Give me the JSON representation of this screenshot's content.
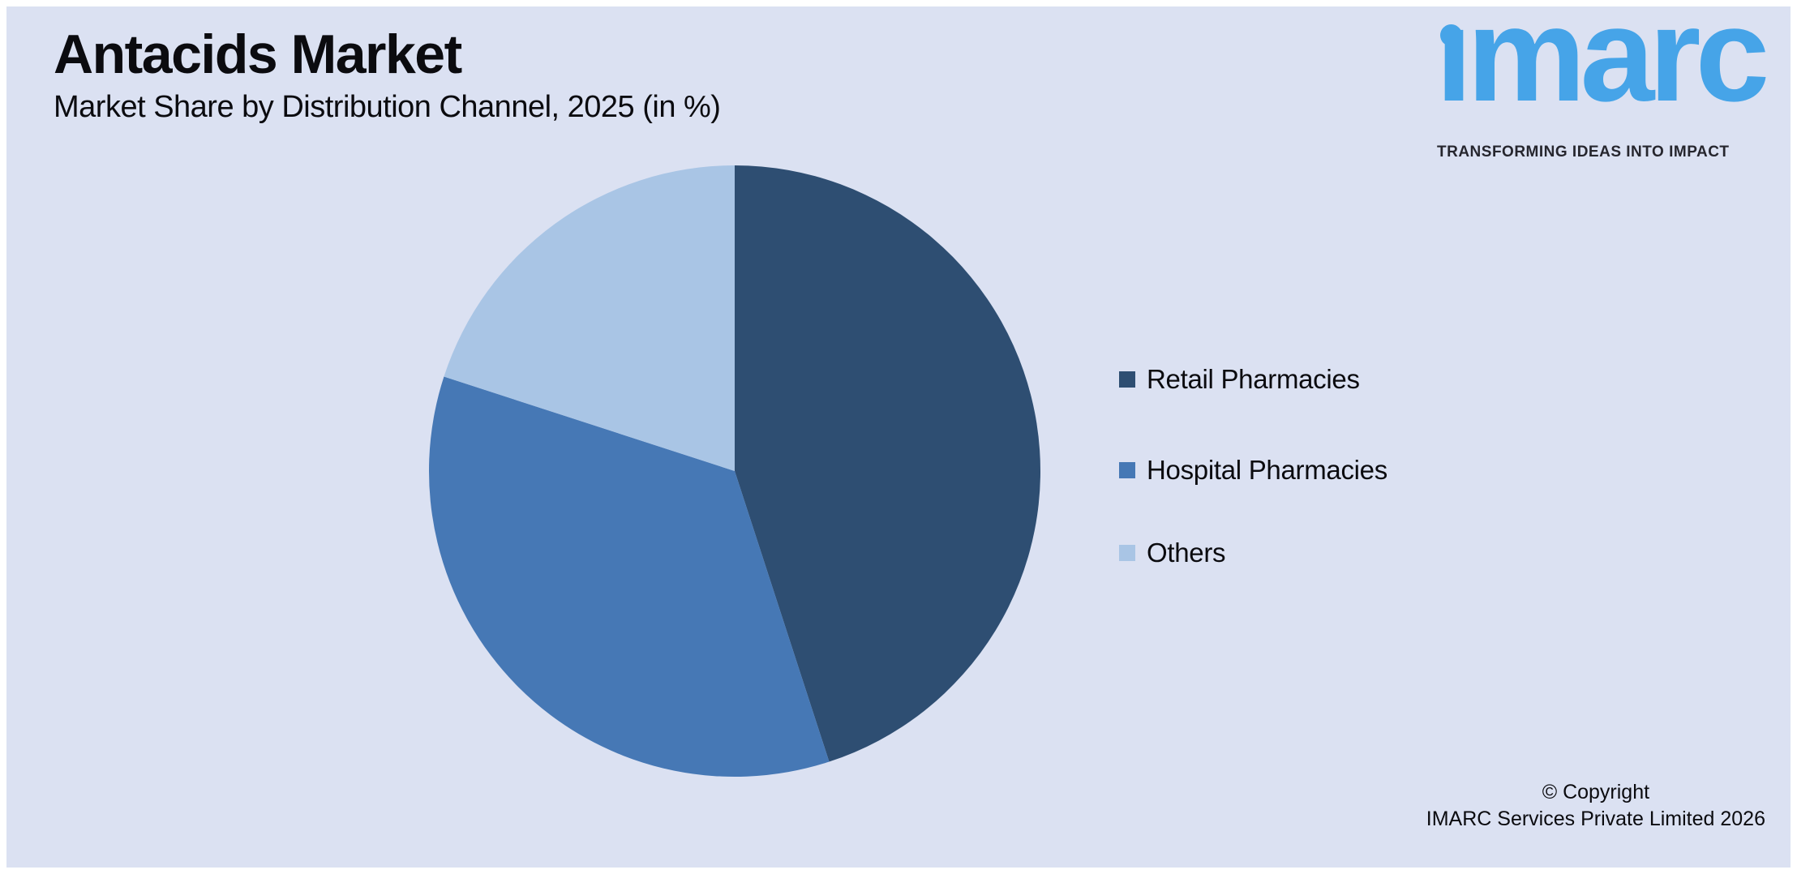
{
  "header": {
    "title": "Antacids Market",
    "subtitle": "Market Share by Distribution Channel, 2025 (in %)"
  },
  "logo": {
    "wordmark": "ımarc",
    "brand_name": "imarc",
    "tagline": "TRANSFORMING IDEAS INTO IMPACT",
    "brand_color": "#46a4e8",
    "tagline_color": "#26262e"
  },
  "chart_data": {
    "type": "pie",
    "title": "Market Share by Distribution Channel, 2025 (in %)",
    "labels": [
      "Retail Pharmacies",
      "Hospital Pharmacies",
      "Others"
    ],
    "values": [
      45,
      35,
      20
    ],
    "colors": [
      "#2e4e72",
      "#4678b5",
      "#a9c5e5"
    ],
    "start_angle_deg": 0,
    "direction": "clockwise",
    "legend_position": "right",
    "data_labels_shown": false
  },
  "footer": {
    "line1": "© Copyright",
    "line2": "IMARC Services Private Limited 2026"
  },
  "theme": {
    "panel_background": "#dbe1f2",
    "page_border": "#ffffff",
    "text_color": "#0b0b0f"
  }
}
